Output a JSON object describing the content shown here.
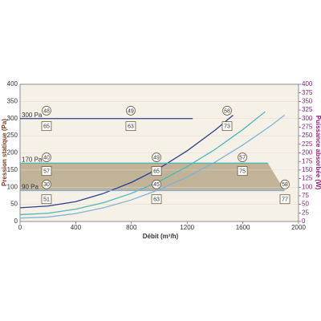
{
  "chart_data": {
    "type": "line",
    "xlabel": "Débit (m³/h)",
    "ylabel": "Pression statique (Pa)",
    "y2label": "Puissance absorbée (W)",
    "xlim": [
      0,
      2000
    ],
    "xticks": [
      0,
      400,
      800,
      1200,
      1600,
      2000
    ],
    "ylim": [
      0,
      400
    ],
    "yticks": [
      0,
      50,
      100,
      150,
      200,
      250,
      300,
      350,
      400
    ],
    "y2lim": [
      0,
      400
    ],
    "y2ticks": [
      0,
      25,
      50,
      75,
      100,
      125,
      150,
      175,
      200,
      225,
      250,
      275,
      300,
      325,
      350,
      375,
      400
    ],
    "series": [
      {
        "color": "#2b3f8f",
        "x": [
          0,
          200,
          400,
          600,
          800,
          1000,
          1200,
          1400,
          1530
        ],
        "values": [
          40,
          45,
          58,
          82,
          114,
          155,
          206,
          266,
          310
        ]
      },
      {
        "color": "#4fb7b8",
        "x": [
          0,
          200,
          400,
          600,
          800,
          1000,
          1200,
          1400,
          1600,
          1760
        ],
        "values": [
          20,
          24,
          36,
          55,
          82,
          117,
          160,
          210,
          268,
          320
        ]
      },
      {
        "color": "#7fb1da",
        "x": [
          0,
          200,
          400,
          600,
          800,
          1000,
          1200,
          1400,
          1600,
          1800,
          1900
        ],
        "values": [
          10,
          13,
          23,
          40,
          63,
          93,
          130,
          173,
          223,
          279,
          310
        ]
      },
      {
        "color": "#2b3f8f",
        "x": [
          0,
          1240
        ],
        "values": [
          300,
          300
        ]
      },
      {
        "color": "#4fb7b8",
        "x": [
          0,
          1780
        ],
        "values": [
          170,
          170
        ]
      },
      {
        "color": "#7fb1da",
        "x": [
          0,
          1900
        ],
        "values": [
          90,
          90
        ]
      }
    ],
    "bands": [
      {
        "color": "#b6a88a",
        "x": [
          0,
          1780,
          1900
        ],
        "upper": [
          170,
          170,
          90
        ],
        "lower": [
          90,
          90,
          90
        ]
      }
    ],
    "line_labels": [
      {
        "text": "300 Pa",
        "y": 300
      },
      {
        "text": "170 Pa",
        "y": 170
      },
      {
        "text": "90 Pa",
        "y": 90
      }
    ],
    "annotations": [
      {
        "text": "48",
        "shape": "circle",
        "x": 190,
        "y": 323
      },
      {
        "text": "49",
        "shape": "circle",
        "x": 795,
        "y": 323
      },
      {
        "text": "58",
        "shape": "circle",
        "x": 1487,
        "y": 323
      },
      {
        "text": "65",
        "shape": "box",
        "x": 190,
        "y": 278
      },
      {
        "text": "63",
        "shape": "box",
        "x": 795,
        "y": 278
      },
      {
        "text": "73",
        "shape": "box",
        "x": 1487,
        "y": 278
      },
      {
        "text": "40",
        "shape": "circle",
        "x": 190,
        "y": 187
      },
      {
        "text": "49",
        "shape": "circle",
        "x": 980,
        "y": 187
      },
      {
        "text": "57",
        "shape": "circle",
        "x": 1597,
        "y": 187
      },
      {
        "text": "57",
        "shape": "box",
        "x": 190,
        "y": 147
      },
      {
        "text": "65",
        "shape": "box",
        "x": 980,
        "y": 147
      },
      {
        "text": "75",
        "shape": "box",
        "x": 1597,
        "y": 147
      },
      {
        "text": "30",
        "shape": "circle",
        "x": 190,
        "y": 108
      },
      {
        "text": "45",
        "shape": "circle",
        "x": 980,
        "y": 108
      },
      {
        "text": "58",
        "shape": "circle",
        "x": 1902,
        "y": 108
      },
      {
        "text": "51",
        "shape": "box",
        "x": 190,
        "y": 65
      },
      {
        "text": "63",
        "shape": "box",
        "x": 980,
        "y": 65
      },
      {
        "text": "77",
        "shape": "box",
        "x": 1902,
        "y": 65
      }
    ]
  }
}
